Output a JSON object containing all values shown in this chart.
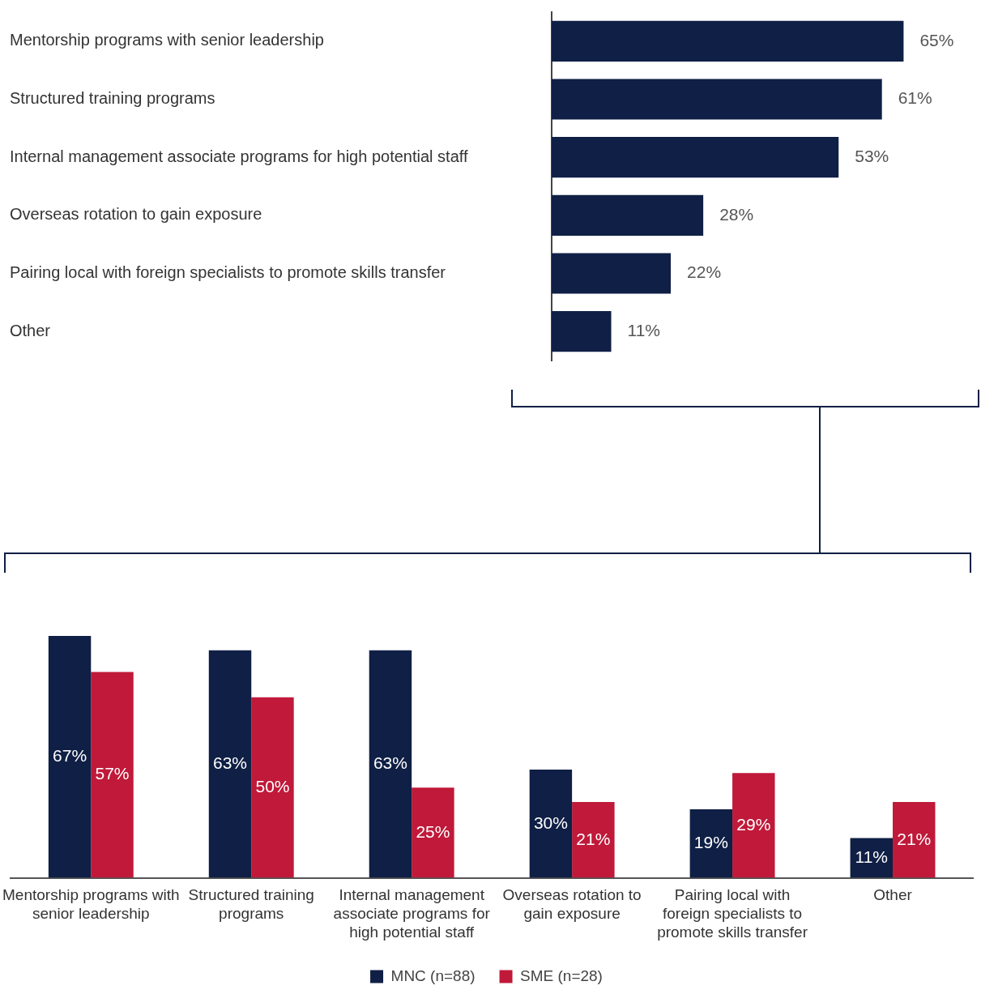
{
  "chart_data": [
    {
      "type": "bar",
      "orientation": "horizontal",
      "categories": [
        "Mentorship programs with senior leadership",
        "Structured training programs",
        "Internal management associate programs for high potential staff",
        "Overseas rotation to gain exposure",
        "Pairing local with foreign specialists to promote skills transfer",
        "Other"
      ],
      "values": [
        65,
        61,
        53,
        28,
        22,
        11
      ],
      "value_labels": [
        "65%",
        "61%",
        "53%",
        "28%",
        "22%",
        "11%"
      ],
      "color": "#0f1f45",
      "grid": false
    },
    {
      "type": "bar",
      "categories": [
        "Mentorship programs with senior leadership",
        "Structured training programs",
        "Internal management associate programs for high potential staff",
        "Overseas rotation to gain exposure",
        "Pairing local with foreign specialists to promote skills transfer",
        "Other"
      ],
      "series": [
        {
          "name": "MNC (n=88)",
          "color": "#0f1f45",
          "values": [
            67,
            63,
            63,
            30,
            19,
            11
          ],
          "value_labels": [
            "67%",
            "63%",
            "63%",
            "30%",
            "19%",
            "11%"
          ]
        },
        {
          "name": "SME (n=28)",
          "color": "#c0193a",
          "values": [
            57,
            50,
            25,
            21,
            29,
            21
          ],
          "value_labels": [
            "57%",
            "50%",
            "25%",
            "21%",
            "29%",
            "21%"
          ]
        }
      ],
      "legend": "bottom",
      "grid": false
    }
  ]
}
